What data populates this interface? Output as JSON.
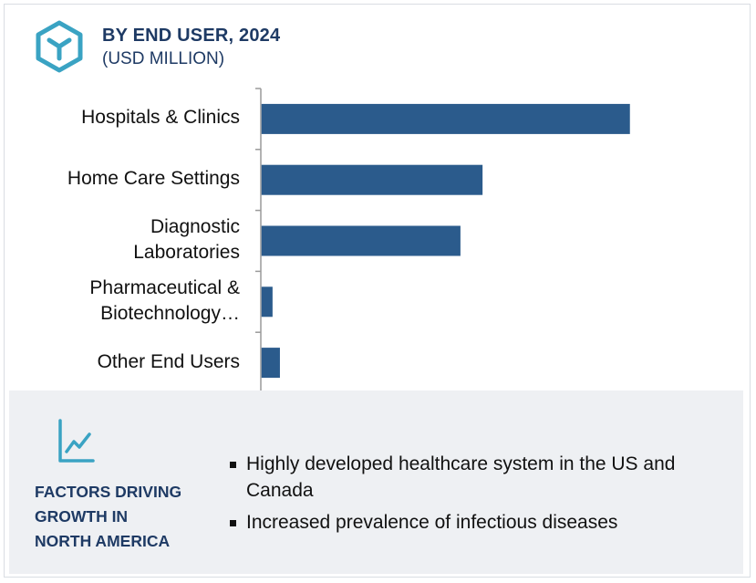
{
  "header": {
    "title": "BY END USER, 2024",
    "subtitle": "(USD MILLION)",
    "logo_icon": "cube-y-logo-icon"
  },
  "colors": {
    "bar": "#2b5b8c",
    "title": "#1e3a64",
    "accent": "#3aa3c3",
    "panel": "#eef0f3"
  },
  "chart_data": {
    "type": "bar",
    "orientation": "horizontal",
    "title": "BY END USER, 2024",
    "subtitle": "(USD MILLION)",
    "categories": [
      "Hospitals & Clinics",
      "Home Care Settings",
      "Diagnostic\nLaboratories",
      "Pharmaceutical &\nBiotechnology…",
      "Other End Users"
    ],
    "values": [
      100,
      60,
      54,
      3,
      5
    ],
    "xlabel": "",
    "ylabel": "",
    "xlim": [
      0,
      100
    ],
    "grid": false,
    "value_labels": false
  },
  "factors": {
    "icon": "trend-chart-icon",
    "heading": "FACTORS DRIVING\nGROWTH IN\nNORTH AMERICA",
    "items": [
      "Highly developed healthcare system in the US and Canada",
      "Increased prevalence of infectious diseases"
    ]
  }
}
